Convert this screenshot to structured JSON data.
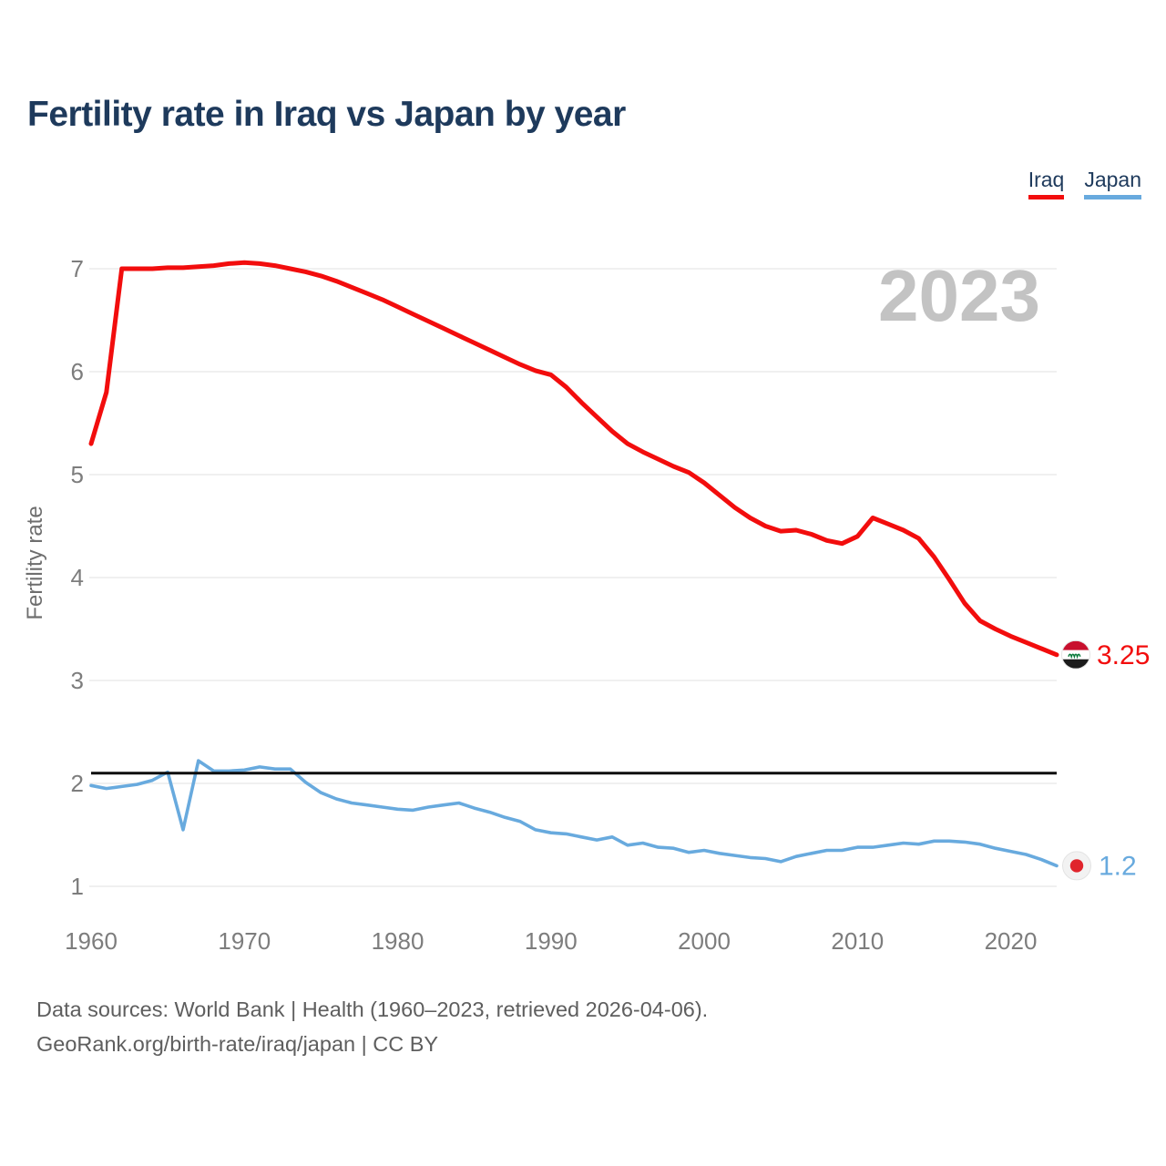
{
  "title": "Fertility rate in Iraq vs Japan by year",
  "legend": {
    "items": [
      {
        "label": "Iraq",
        "color": "#f20d0d"
      },
      {
        "label": "Japan",
        "color": "#68aade"
      }
    ]
  },
  "watermark": "2023",
  "end_labels": {
    "iraq": "3.25",
    "japan": "1.2"
  },
  "footer": {
    "line1": "Data sources: World Bank | Health (1960–2023, retrieved 2026-04-06).",
    "line2": "GeoRank.org/birth-rate/iraq/japan | CC BY"
  },
  "colors": {
    "title_text": "#1e3a5c",
    "axis_text": "#7d7d7d",
    "gridline": "#ececec",
    "reference_line": "#0a0a0a",
    "watermark": "#c3c3c3",
    "footer_text": "#5e5e5e",
    "iraq_line": "#f20d0d",
    "japan_line": "#68aade",
    "iraq_flag_red": "#c8102e",
    "iraq_flag_black": "#1b1b1b",
    "iraq_flag_green": "#0a7a3a",
    "japan_flag_bg": "#f2f2f2",
    "japan_flag_red": "#e0242c",
    "flag_ring": "#e3e3e3"
  },
  "chart_data": {
    "type": "line",
    "title": "Fertility rate in Iraq vs Japan by year",
    "xlabel": "",
    "ylabel": "Fertility rate",
    "xlim": [
      1960,
      2023
    ],
    "ylim": [
      1,
      7
    ],
    "xticks": [
      1960,
      1970,
      1980,
      1990,
      2000,
      2010,
      2020
    ],
    "yticks": [
      1,
      2,
      3,
      4,
      5,
      6,
      7
    ],
    "grid": "horizontal",
    "legend_position": "top-right",
    "reference_line": {
      "value": 2.1
    },
    "x": [
      1960,
      1961,
      1962,
      1963,
      1964,
      1965,
      1966,
      1967,
      1968,
      1969,
      1970,
      1971,
      1972,
      1973,
      1974,
      1975,
      1976,
      1977,
      1978,
      1979,
      1980,
      1981,
      1982,
      1983,
      1984,
      1985,
      1986,
      1987,
      1988,
      1989,
      1990,
      1991,
      1992,
      1993,
      1994,
      1995,
      1996,
      1997,
      1998,
      1999,
      2000,
      2001,
      2002,
      2003,
      2004,
      2005,
      2006,
      2007,
      2008,
      2009,
      2010,
      2011,
      2012,
      2013,
      2014,
      2015,
      2016,
      2017,
      2018,
      2019,
      2020,
      2021,
      2022,
      2023
    ],
    "series": [
      {
        "name": "Iraq",
        "color": "#f20d0d",
        "end_label": "3.25",
        "values": [
          5.3,
          5.8,
          7.0,
          7.0,
          7.0,
          7.01,
          7.01,
          7.02,
          7.03,
          7.05,
          7.06,
          7.05,
          7.03,
          7.0,
          6.97,
          6.93,
          6.88,
          6.82,
          6.76,
          6.7,
          6.63,
          6.56,
          6.49,
          6.42,
          6.35,
          6.28,
          6.21,
          6.14,
          6.07,
          6.01,
          5.97,
          5.85,
          5.7,
          5.56,
          5.42,
          5.3,
          5.22,
          5.15,
          5.08,
          5.02,
          4.92,
          4.8,
          4.68,
          4.58,
          4.5,
          4.45,
          4.46,
          4.42,
          4.36,
          4.33,
          4.4,
          4.58,
          4.52,
          4.46,
          4.38,
          4.2,
          3.98,
          3.75,
          3.58,
          3.5,
          3.43,
          3.37,
          3.31,
          3.25
        ]
      },
      {
        "name": "Japan",
        "color": "#68aade",
        "end_label": "1.2",
        "values": [
          1.98,
          1.95,
          1.97,
          1.99,
          2.03,
          2.11,
          1.55,
          2.22,
          2.12,
          2.12,
          2.13,
          2.16,
          2.14,
          2.14,
          2.01,
          1.91,
          1.85,
          1.81,
          1.79,
          1.77,
          1.75,
          1.74,
          1.77,
          1.79,
          1.81,
          1.76,
          1.72,
          1.67,
          1.63,
          1.55,
          1.52,
          1.51,
          1.48,
          1.45,
          1.48,
          1.4,
          1.42,
          1.38,
          1.37,
          1.33,
          1.35,
          1.32,
          1.3,
          1.28,
          1.27,
          1.24,
          1.29,
          1.32,
          1.35,
          1.35,
          1.38,
          1.38,
          1.4,
          1.42,
          1.41,
          1.44,
          1.44,
          1.43,
          1.41,
          1.37,
          1.34,
          1.31,
          1.26,
          1.2
        ]
      }
    ]
  }
}
